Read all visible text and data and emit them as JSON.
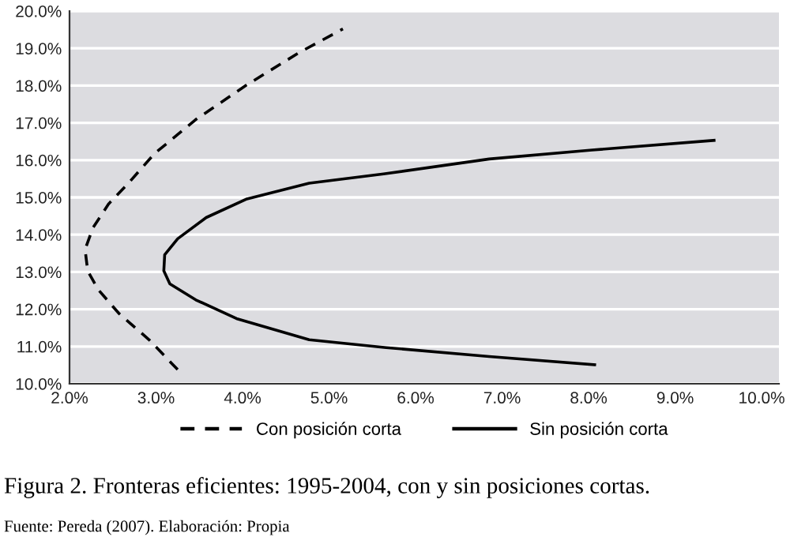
{
  "chart_data": {
    "type": "line",
    "annotations": [
      "Figura 2. Fronteras eficientes: 1995-2004, con y sin posiciones cortas.",
      "Fuente: Pereda (2007). Elaboración: Propia"
    ],
    "series": [
      {
        "name": "Con posición corta",
        "color": "#000000",
        "line_style": "dashed",
        "x": [
          3.25,
          2.92,
          2.57,
          2.33,
          2.21,
          2.18,
          2.27,
          2.45,
          2.68,
          2.98,
          3.46,
          4.05,
          4.65,
          5.16
        ],
        "values": [
          10.38,
          11.18,
          11.89,
          12.53,
          13.03,
          13.6,
          14.18,
          14.82,
          15.38,
          16.17,
          17.09,
          18.02,
          18.88,
          19.52
        ]
      },
      {
        "name": "Sin posición corta",
        "color": "#000000",
        "line_style": "solid",
        "x": [
          8.07,
          6.85,
          5.66,
          4.77,
          3.93,
          3.46,
          3.16,
          3.09,
          3.1,
          3.25,
          3.58,
          4.05,
          4.77,
          5.63,
          6.85,
          8.04,
          9.45
        ],
        "values": [
          10.51,
          10.73,
          10.97,
          11.18,
          11.75,
          12.25,
          12.68,
          13.03,
          13.46,
          13.89,
          14.46,
          14.96,
          15.38,
          15.63,
          16.03,
          16.27,
          16.53
        ]
      }
    ],
    "xlim": [
      2,
      10.2
    ],
    "ylim": [
      10,
      20
    ],
    "xticks": [
      {
        "value": 2,
        "label": "2.0%"
      },
      {
        "value": 3,
        "label": "3.0%"
      },
      {
        "value": 4,
        "label": "4.0%"
      },
      {
        "value": 5,
        "label": "5.0%"
      },
      {
        "value": 6,
        "label": "6.0%"
      },
      {
        "value": 7,
        "label": "7.0%"
      },
      {
        "value": 8,
        "label": "8.0%"
      },
      {
        "value": 9,
        "label": "9.0%"
      },
      {
        "value": 10,
        "label": "10.0%"
      }
    ],
    "yticks": [
      {
        "value": 10,
        "label": "10.0%"
      },
      {
        "value": 11,
        "label": "11.0%"
      },
      {
        "value": 12,
        "label": "12.0%"
      },
      {
        "value": 13,
        "label": "13.0%"
      },
      {
        "value": 14,
        "label": "14.0%"
      },
      {
        "value": 15,
        "label": "15.0%"
      },
      {
        "value": 16,
        "label": "16.0%"
      },
      {
        "value": 17,
        "label": "17.0%"
      },
      {
        "value": 18,
        "label": "18.0%"
      },
      {
        "value": 19,
        "label": "19.0%"
      },
      {
        "value": 20,
        "label": "20.0%"
      }
    ],
    "grid": "y",
    "legend": "bottom",
    "marker": "none"
  }
}
